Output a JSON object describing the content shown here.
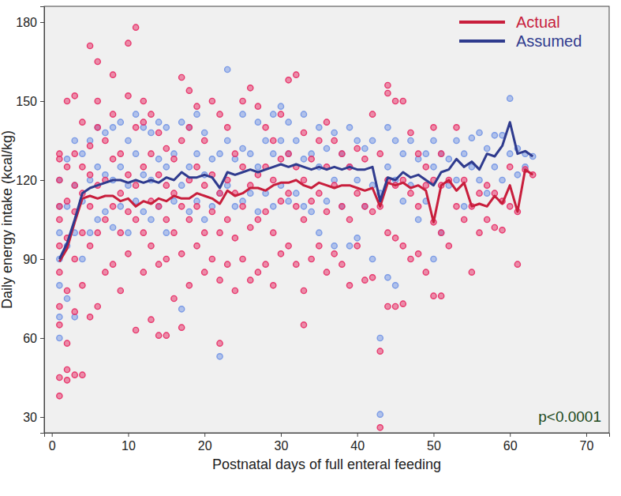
{
  "chart_data": {
    "type": "scatter",
    "x_label": "Postnatal days of full enteral feeding",
    "y_label": "Daily energy intake (kcal/kg)",
    "xlim": [
      -1,
      73
    ],
    "ylim": [
      24,
      186
    ],
    "xticks": [
      0,
      10,
      20,
      30,
      40,
      50,
      60,
      70
    ],
    "yticks": [
      30,
      60,
      90,
      120,
      150,
      180
    ],
    "grid": false,
    "legend": "top-right",
    "annotations": [
      {
        "text": "p<0.0001"
      }
    ],
    "series": [
      {
        "type": "scatter",
        "marker": "circle",
        "color": "#7b9be6",
        "x": [
          1,
          1,
          1,
          1,
          1,
          1,
          1,
          2,
          2,
          2,
          2,
          3,
          3,
          3,
          3,
          4,
          4,
          4,
          5,
          5,
          5,
          6,
          6,
          6,
          7,
          7,
          7,
          8,
          8,
          8,
          9,
          9,
          9,
          10,
          10,
          10,
          11,
          11,
          11,
          12,
          12,
          12,
          13,
          13,
          13,
          14,
          14,
          14,
          15,
          15,
          15,
          16,
          16,
          17,
          17,
          17,
          18,
          18,
          18,
          19,
          19,
          19,
          20,
          20,
          20,
          21,
          21,
          22,
          22,
          22,
          23,
          23,
          23,
          24,
          24,
          25,
          25,
          25,
          26,
          26,
          27,
          27,
          27,
          28,
          28,
          29,
          29,
          29,
          30,
          30,
          30,
          31,
          31,
          31,
          32,
          32,
          33,
          33,
          33,
          34,
          34,
          35,
          35,
          35,
          36,
          36,
          37,
          37,
          37,
          38,
          38,
          39,
          39,
          39,
          40,
          40,
          40,
          41,
          41,
          42,
          42,
          42,
          43,
          43,
          43,
          44,
          44,
          44,
          45,
          45,
          45,
          46,
          46,
          47,
          47,
          48,
          48,
          49,
          49,
          50,
          50,
          50,
          51,
          51,
          52,
          52,
          53,
          53,
          54,
          54,
          55,
          55,
          56,
          56,
          57,
          57,
          58,
          58,
          59,
          59,
          60,
          60,
          61,
          61,
          62,
          62,
          63
        ],
        "values": [
          60,
          68,
          80,
          90,
          100,
          110,
          120,
          75,
          95,
          110,
          128,
          68,
          100,
          118,
          135,
          90,
          112,
          130,
          100,
          120,
          135,
          105,
          125,
          140,
          108,
          122,
          138,
          102,
          120,
          140,
          110,
          125,
          142,
          100,
          118,
          135,
          112,
          130,
          145,
          108,
          122,
          140,
          105,
          120,
          138,
          110,
          128,
          142,
          100,
          125,
          140,
          112,
          130,
          71,
          118,
          142,
          108,
          125,
          140,
          112,
          130,
          145,
          105,
          122,
          138,
          110,
          128,
          53,
          115,
          130,
          162,
          118,
          135,
          110,
          128,
          112,
          132,
          145,
          115,
          130,
          108,
          125,
          142,
          115,
          135,
          110,
          130,
          145,
          118,
          135,
          148,
          112,
          130,
          142,
          115,
          135,
          110,
          128,
          145,
          108,
          130,
          100,
          125,
          140,
          112,
          132,
          95,
          120,
          138,
          110,
          130,
          95,
          125,
          140,
          98,
          120,
          135,
          110,
          132,
          90,
          118,
          135,
          31,
          60,
          115,
          83,
          125,
          140,
          80,
          120,
          135,
          112,
          130,
          118,
          135,
          105,
          128,
          112,
          130,
          90,
          125,
          135,
          100,
          130,
          118,
          128,
          120,
          135,
          110,
          130,
          125,
          136,
          120,
          138,
          115,
          132,
          125,
          137,
          120,
          137,
          151,
          130,
          122,
          132,
          125,
          130,
          129
        ]
      },
      {
        "type": "scatter",
        "marker": "circle",
        "color": "#e8386e",
        "x": [
          1,
          1,
          1,
          1,
          1,
          1,
          1,
          1,
          1,
          1,
          1,
          2,
          2,
          2,
          2,
          2,
          2,
          2,
          2,
          3,
          3,
          3,
          3,
          3,
          3,
          3,
          4,
          4,
          4,
          4,
          4,
          4,
          5,
          5,
          5,
          5,
          5,
          5,
          6,
          6,
          6,
          6,
          6,
          6,
          7,
          7,
          7,
          7,
          8,
          8,
          8,
          8,
          8,
          9,
          9,
          9,
          9,
          10,
          10,
          10,
          10,
          10,
          11,
          11,
          11,
          11,
          11,
          12,
          12,
          12,
          12,
          12,
          13,
          13,
          13,
          13,
          13,
          14,
          14,
          14,
          14,
          14,
          15,
          15,
          15,
          15,
          15,
          16,
          16,
          16,
          16,
          17,
          17,
          17,
          17,
          17,
          18,
          18,
          18,
          18,
          18,
          19,
          19,
          19,
          19,
          20,
          20,
          20,
          20,
          21,
          21,
          21,
          21,
          22,
          22,
          22,
          22,
          22,
          23,
          23,
          23,
          23,
          24,
          24,
          24,
          24,
          25,
          25,
          25,
          25,
          26,
          26,
          26,
          26,
          27,
          27,
          27,
          27,
          28,
          28,
          28,
          28,
          29,
          29,
          29,
          29,
          30,
          30,
          30,
          30,
          31,
          31,
          31,
          31,
          32,
          32,
          32,
          32,
          33,
          33,
          33,
          33,
          33,
          34,
          34,
          34,
          35,
          35,
          35,
          36,
          36,
          36,
          36,
          37,
          37,
          37,
          38,
          38,
          38,
          39,
          39,
          39,
          40,
          40,
          40,
          41,
          41,
          41,
          42,
          42,
          42,
          43,
          43,
          43,
          43,
          44,
          44,
          44,
          44,
          44,
          45,
          45,
          45,
          45,
          46,
          46,
          46,
          46,
          47,
          47,
          47,
          48,
          48,
          48,
          49,
          49,
          49,
          50,
          50,
          50,
          50,
          51,
          51,
          51,
          51,
          52,
          52,
          53,
          53,
          54,
          54,
          55,
          55,
          56,
          56,
          57,
          57,
          58,
          58,
          59,
          59,
          60,
          60,
          61,
          61,
          62,
          63
        ],
        "values": [
          38,
          45,
          65,
          72,
          85,
          95,
          105,
          110,
          120,
          128,
          130,
          44,
          48,
          58,
          78,
          98,
          112,
          125,
          150,
          46,
          70,
          90,
          108,
          118,
          130,
          152,
          46,
          80,
          100,
          115,
          125,
          142,
          171,
          68,
          95,
          110,
          122,
          133,
          165,
          72,
          100,
          118,
          140,
          150,
          85,
          105,
          120,
          135,
          160,
          88,
          110,
          128,
          145,
          78,
          100,
          115,
          130,
          172,
          92,
          108,
          122,
          152,
          178,
          63,
          105,
          118,
          140,
          150,
          85,
          100,
          125,
          142,
          145,
          67,
          95,
          112,
          130,
          61,
          88,
          110,
          122,
          138,
          61,
          90,
          105,
          118,
          132,
          75,
          100,
          115,
          128,
          159,
          64,
          92,
          110,
          135,
          154,
          80,
          105,
          120,
          140,
          95,
          110,
          125,
          148,
          85,
          100,
          118,
          135,
          90,
          108,
          122,
          150,
          58,
          82,
          100,
          115,
          145,
          88,
          105,
          120,
          140,
          78,
          98,
          115,
          130,
          90,
          110,
          125,
          150,
          82,
          102,
          118,
          155,
          85,
          105,
          122,
          148,
          88,
          108,
          125,
          140,
          80,
          100,
          120,
          135,
          92,
          112,
          128,
          145,
          158,
          95,
          115,
          130,
          160,
          88,
          110,
          125,
          65,
          78,
          105,
          120,
          138,
          90,
          112,
          128,
          95,
          115,
          135,
          85,
          108,
          125,
          142,
          92,
          118,
          135,
          88,
          110,
          130,
          80,
          105,
          125,
          95,
          115,
          132,
          82,
          110,
          128,
          83,
          108,
          145,
          26,
          55,
          110,
          130,
          156,
          153,
          72,
          100,
          120,
          72,
          98,
          118,
          150,
          73,
          95,
          120,
          150,
          90,
          115,
          138,
          92,
          110,
          130,
          85,
          118,
          125,
          76,
          104,
          120,
          140,
          76,
          100,
          118,
          130,
          95,
          120,
          110,
          140,
          105,
          120,
          85,
          110,
          100,
          115,
          105,
          118,
          102,
          115,
          101,
          112,
          110,
          125,
          88,
          108,
          124,
          122
        ]
      },
      {
        "name": "Actual",
        "type": "line",
        "line_style": "solid",
        "color": "#c81e3c",
        "x": [
          1,
          2,
          3,
          4,
          5,
          6,
          7,
          8,
          9,
          10,
          11,
          12,
          13,
          14,
          15,
          16,
          17,
          18,
          19,
          20,
          21,
          22,
          23,
          24,
          25,
          26,
          27,
          28,
          29,
          30,
          31,
          32,
          33,
          34,
          35,
          36,
          37,
          38,
          39,
          40,
          41,
          42,
          43,
          44,
          45,
          46,
          47,
          48,
          49,
          50,
          51,
          52,
          53,
          54,
          55,
          56,
          57,
          58,
          59,
          60,
          61,
          62,
          63
        ],
        "values": [
          89,
          94,
          104,
          113,
          114,
          113,
          114,
          114,
          112,
          113,
          110,
          112,
          111,
          113,
          112,
          114,
          113,
          113,
          115,
          114,
          113,
          111,
          116,
          114,
          115,
          117,
          117,
          116,
          118,
          119,
          119,
          120,
          118,
          117,
          119,
          118,
          117,
          118,
          118,
          117,
          116,
          117,
          110,
          119,
          118,
          119,
          117,
          118,
          116,
          104,
          118,
          120,
          116,
          119,
          110,
          111,
          110,
          114,
          111,
          118,
          108,
          124,
          122
        ]
      },
      {
        "name": "Assumed",
        "type": "line",
        "line_style": "solid",
        "color": "#2f3b8e",
        "x": [
          1,
          2,
          3,
          4,
          5,
          6,
          7,
          8,
          9,
          10,
          11,
          12,
          13,
          14,
          15,
          16,
          17,
          18,
          19,
          20,
          21,
          22,
          23,
          24,
          25,
          26,
          27,
          28,
          29,
          30,
          31,
          32,
          33,
          34,
          35,
          36,
          37,
          38,
          39,
          40,
          41,
          42,
          43,
          44,
          45,
          46,
          47,
          48,
          49,
          50,
          51,
          52,
          53,
          54,
          55,
          56,
          57,
          58,
          59,
          60,
          61,
          62,
          63
        ],
        "values": [
          90,
          96,
          105,
          115,
          117,
          118,
          119,
          120,
          120,
          119,
          120,
          119,
          120,
          119,
          121,
          120,
          123,
          121,
          121,
          122,
          121,
          117,
          123,
          122,
          123,
          124,
          123,
          124,
          125,
          126,
          125,
          126,
          125,
          124,
          125,
          124,
          125,
          124,
          125,
          124,
          124,
          125,
          112,
          121,
          120,
          123,
          121,
          122,
          120,
          118,
          123,
          124,
          128,
          125,
          127,
          124,
          130,
          129,
          133,
          142,
          130,
          131,
          129
        ]
      }
    ]
  }
}
